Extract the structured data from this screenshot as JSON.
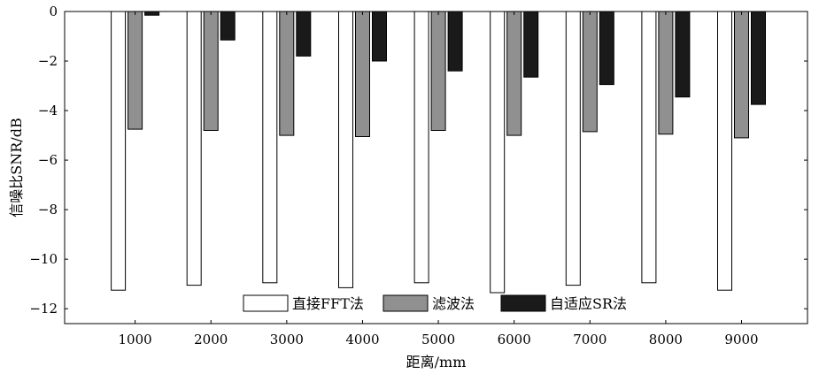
{
  "chart_data": {
    "type": "bar",
    "title": "",
    "xlabel": "距离/mm",
    "ylabel": "信噪比SNR/dB",
    "categories": [
      "1000",
      "2000",
      "3000",
      "4000",
      "5000",
      "6000",
      "7000",
      "8000",
      "9000"
    ],
    "series": [
      {
        "name": "直接FFT法",
        "color": "#ffffff",
        "values": [
          -11.25,
          -11.05,
          -10.95,
          -11.15,
          -10.95,
          -11.35,
          -11.05,
          -10.95,
          -11.25
        ]
      },
      {
        "name": "滤波法",
        "color": "#909090",
        "values": [
          -4.75,
          -4.8,
          -5.0,
          -5.05,
          -4.8,
          -5.0,
          -4.85,
          -4.95,
          -5.1
        ]
      },
      {
        "name": "自适应SR法",
        "color": "#1a1a1a",
        "values": [
          -0.15,
          -1.15,
          -1.8,
          -2.0,
          -2.4,
          -2.65,
          -2.95,
          -3.45,
          -3.75
        ]
      }
    ],
    "yticks": [
      0,
      -2,
      -4,
      -6,
      -8,
      -10,
      -12
    ],
    "ylim": [
      -12.6,
      0
    ],
    "grid": false,
    "legend_position": "bottom-center"
  }
}
